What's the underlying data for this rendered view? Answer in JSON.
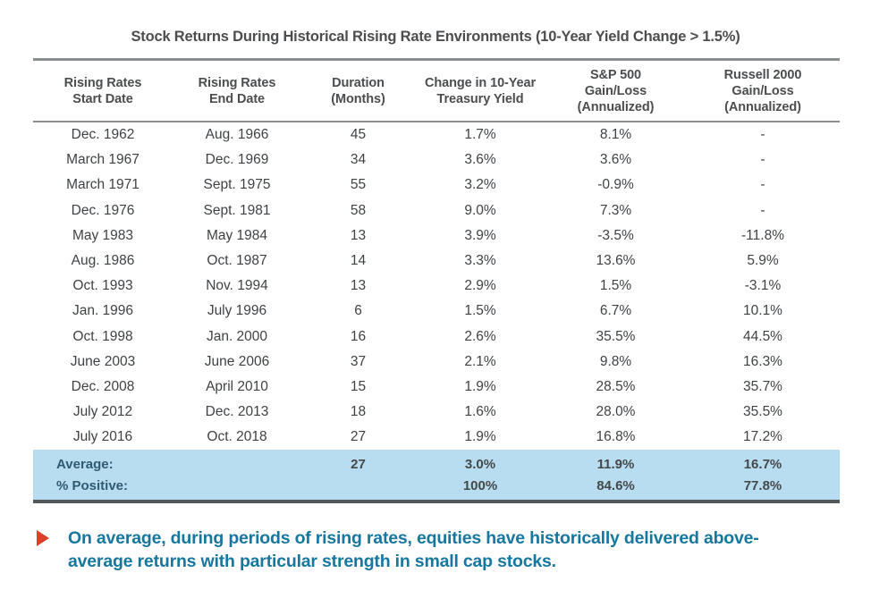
{
  "chart_data": {
    "type": "table",
    "title": "Stock Returns During Historical Rising Rate Environments (10-Year Yield Change > 1.5%)",
    "columns": [
      "Rising Rates\nStart Date",
      "Rising Rates\nEnd Date",
      "Duration\n(Months)",
      "Change in 10-Year\nTreasury Yield",
      "S&P 500\nGain/Loss\n(Annualized)",
      "Russell 2000\nGain/Loss\n(Annualized)"
    ],
    "rows": [
      [
        "Dec. 1962",
        "Aug. 1966",
        "45",
        "1.7%",
        "8.1%",
        "-"
      ],
      [
        "March 1967",
        "Dec. 1969",
        "34",
        "3.6%",
        "3.6%",
        "-"
      ],
      [
        "March 1971",
        "Sept. 1975",
        "55",
        "3.2%",
        "-0.9%",
        "-"
      ],
      [
        "Dec. 1976",
        "Sept. 1981",
        "58",
        "9.0%",
        "7.3%",
        "-"
      ],
      [
        "May 1983",
        "May 1984",
        "13",
        "3.9%",
        "-3.5%",
        "-11.8%"
      ],
      [
        "Aug. 1986",
        "Oct. 1987",
        "14",
        "3.3%",
        "13.6%",
        "5.9%"
      ],
      [
        "Oct. 1993",
        "Nov. 1994",
        "13",
        "2.9%",
        "1.5%",
        "-3.1%"
      ],
      [
        "Jan. 1996",
        "July 1996",
        "6",
        "1.5%",
        "6.7%",
        "10.1%"
      ],
      [
        "Oct. 1998",
        "Jan. 2000",
        "16",
        "2.6%",
        "35.5%",
        "44.5%"
      ],
      [
        "June 2003",
        "June 2006",
        "37",
        "2.1%",
        "9.8%",
        "16.3%"
      ],
      [
        "Dec. 2008",
        "April 2010",
        "15",
        "1.9%",
        "28.5%",
        "35.7%"
      ],
      [
        "July 2012",
        "Dec. 2013",
        "18",
        "1.6%",
        "28.0%",
        "35.5%"
      ],
      [
        "July 2016",
        "Oct. 2018",
        "27",
        "1.9%",
        "16.8%",
        "17.2%"
      ]
    ],
    "summary_rows": [
      [
        "Average:",
        "",
        "27",
        "3.0%",
        "11.9%",
        "16.7%"
      ],
      [
        "% Positive:",
        "",
        "",
        "100%",
        "84.6%",
        "77.8%"
      ]
    ],
    "layout": {
      "grid": "horizontal-rules-only",
      "summary_rows_highlighted": true
    }
  },
  "callout": {
    "bullet_icon": "triangle-right-icon",
    "text": "On average, during periods of rising rates, equities have historically delivered above-average returns with particular strength in small cap stocks."
  },
  "colors": {
    "highlight_band": "#b8ddf0",
    "callout_text": "#17779e",
    "bullet_color": "#d84227",
    "body_text": "#3f4245",
    "summary_label_text": "#2e5a72",
    "summary_value_text": "#45484a",
    "rule_color": "#8a8d8f",
    "rule_dark_color": "#54575a"
  }
}
